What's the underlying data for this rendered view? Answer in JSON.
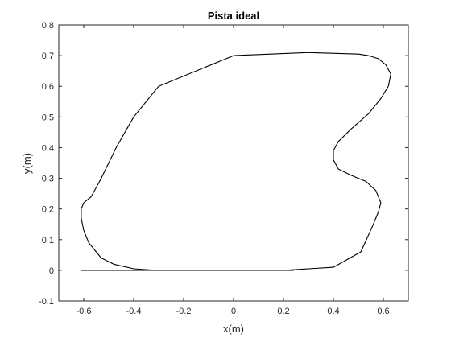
{
  "chart_data": {
    "type": "line",
    "title": "Pista ideal",
    "xlabel": "x(m)",
    "ylabel": "y(m)",
    "xlim": [
      -0.7,
      0.7
    ],
    "ylim": [
      -0.1,
      0.8
    ],
    "xticks": [
      "-0.6",
      "-0.4",
      "-0.2",
      "0",
      "0.2",
      "0.4",
      "0.6"
    ],
    "yticks": [
      "-0.1",
      "0",
      "0.1",
      "0.2",
      "0.3",
      "0.4",
      "0.5",
      "0.6",
      "0.7",
      "0.8"
    ],
    "grid": false,
    "line_color": "#000000",
    "series": [
      {
        "x": [
          -0.31,
          -0.4,
          -0.48,
          -0.53,
          -0.58,
          -0.6,
          -0.61,
          -0.61,
          -0.6,
          -0.57,
          -0.53,
          -0.47,
          -0.4,
          -0.3,
          0.0,
          0.3,
          0.5,
          0.54,
          0.58,
          0.61,
          0.63,
          0.62,
          0.59,
          0.54,
          0.47,
          0.42,
          0.4,
          0.4,
          0.42,
          0.47,
          0.53,
          0.57,
          0.59,
          0.58,
          0.56,
          0.51,
          0.4,
          0.2,
          0.0,
          -0.07,
          -0.12,
          -0.16,
          -0.2,
          -0.26,
          -0.32,
          -0.38,
          -0.42,
          -0.44,
          -0.46,
          -0.5,
          -0.55,
          -0.59,
          -0.61,
          -0.61,
          -0.6,
          -0.56,
          -0.48,
          -0.42,
          -0.35,
          -0.3,
          -0.25,
          -0.2,
          -0.15,
          -0.11,
          -0.05,
          0.02,
          0.1,
          0.17,
          0.21,
          0.23,
          0.24,
          0.23,
          0.2,
          0.14,
          0.08,
          0.0,
          -0.08,
          -0.15,
          -0.22,
          -0.28,
          -0.31
        ],
        "y": [
          0.0,
          0.005,
          0.02,
          0.04,
          0.09,
          0.13,
          0.17,
          0.2,
          0.22,
          0.24,
          0.3,
          0.4,
          0.5,
          0.6,
          0.7,
          0.71,
          0.705,
          0.7,
          0.69,
          0.67,
          0.64,
          0.6,
          0.56,
          0.51,
          0.46,
          0.42,
          0.39,
          0.36,
          0.33,
          0.31,
          0.29,
          0.26,
          0.22,
          0.19,
          0.15,
          0.06,
          0.01,
          0.0,
          0.0,
          0.0,
          0.0,
          0.0,
          0.0,
          0.0,
          0.0,
          0.0,
          0.0,
          0.0,
          0.0,
          0.0,
          0.0,
          0.0,
          0.0,
          0.0,
          0.0,
          0.0,
          0.0,
          0.0,
          0.0,
          0.0,
          0.0,
          0.0,
          0.0,
          0.0,
          0.0,
          0.0,
          0.0,
          0.0,
          0.0,
          0.0,
          0.0,
          0.0,
          0.0,
          0.0,
          0.0,
          0.0,
          0.0,
          0.0,
          0.0,
          0.0,
          0.0
        ]
      }
    ]
  }
}
